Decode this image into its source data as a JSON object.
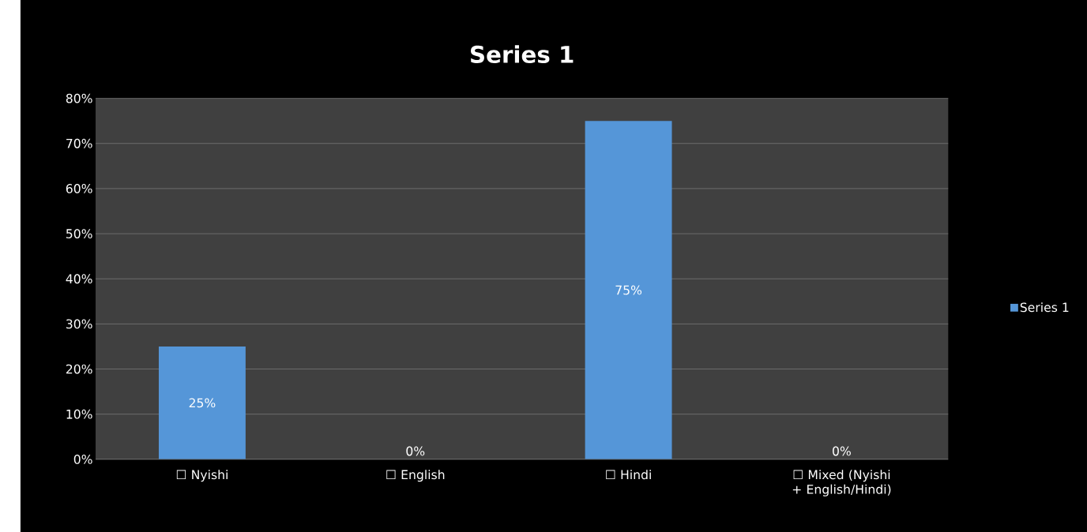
{
  "chart_data": {
    "type": "bar",
    "title": "Series 1",
    "categories": [
      "☐ Nyishi",
      "☐ English",
      "☐ Hindi",
      "☐ Mixed (Nyishi + English/Hindi)"
    ],
    "series": [
      {
        "name": "Series 1",
        "color": "#5596d8",
        "values": [
          25,
          0,
          75,
          0
        ],
        "value_labels": [
          "25%",
          "0%",
          "75%",
          "0%"
        ]
      }
    ],
    "ylim": [
      0,
      80
    ],
    "yticks": [
      {
        "value": 0,
        "label": "0%"
      },
      {
        "value": 10,
        "label": "10%"
      },
      {
        "value": 20,
        "label": "20%"
      },
      {
        "value": 30,
        "label": "30%"
      },
      {
        "value": 40,
        "label": "40%"
      },
      {
        "value": 50,
        "label": "50%"
      },
      {
        "value": 60,
        "label": "60%"
      },
      {
        "value": 70,
        "label": "70%"
      },
      {
        "value": 80,
        "label": "80%"
      }
    ],
    "grid": "y",
    "legend": "right"
  }
}
